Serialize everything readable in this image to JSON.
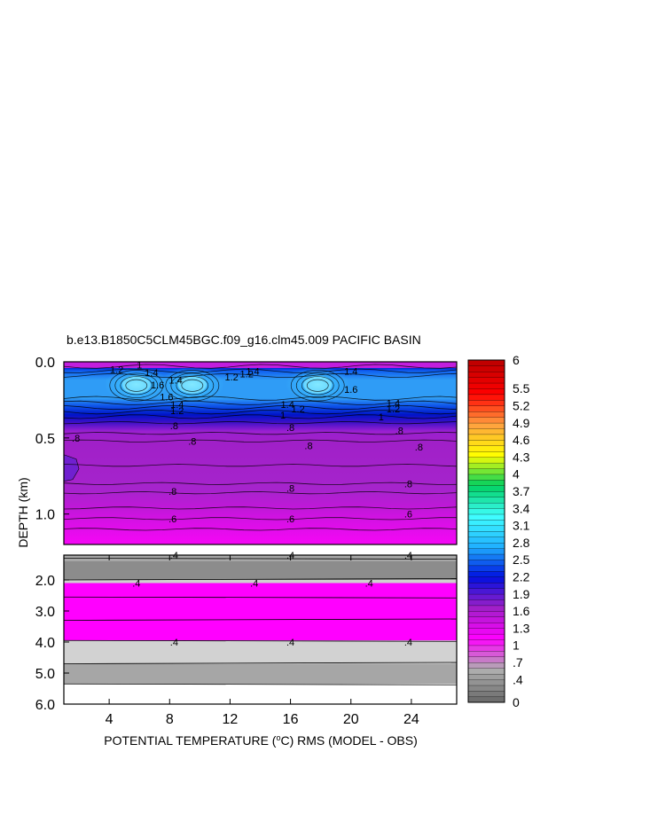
{
  "chart_data": {
    "type": "heatmap",
    "title": "b.e13.B1850C5CLM45BGC.f09_g16.clm45.009 PACIFIC BASIN",
    "xlabel_parts": [
      "POTENTIAL TEMPERATURE (",
      "o",
      "C) RMS (MODEL - OBS)"
    ],
    "ylabel": "DEPTH (km)",
    "x_range": [
      1,
      27
    ],
    "x_ticks": [
      4,
      8,
      12,
      16,
      20,
      24
    ],
    "x_tick_labels": [
      "4",
      "8",
      "12",
      "16",
      "20",
      "24"
    ],
    "upper_panel": {
      "depth_range_km": [
        0,
        1.2
      ],
      "y_ticks": [
        0.0,
        0.5,
        1.0
      ],
      "y_tick_labels": [
        "0.0",
        "0.5",
        "1.0"
      ]
    },
    "lower_panel": {
      "depth_range_km": [
        1.2,
        6.0
      ],
      "y_ticks": [
        2.0,
        3.0,
        4.0,
        5.0,
        6.0
      ],
      "y_tick_labels": [
        "2.0",
        "3.0",
        "4.0",
        "5.0",
        "6.0"
      ]
    },
    "colorbar": {
      "range": [
        0,
        6
      ],
      "label_values": [
        0,
        0.4,
        0.7,
        1,
        1.3,
        1.6,
        1.9,
        2.2,
        2.5,
        2.8,
        3.1,
        3.4,
        3.7,
        4,
        4.3,
        4.6,
        4.9,
        5.2,
        5.5,
        6
      ],
      "labels": [
        "0",
        ".4",
        ".7",
        "1",
        "1.3",
        "1.6",
        "1.9",
        "2.2",
        "2.5",
        "2.8",
        "3.1",
        "3.4",
        "3.7",
        "4",
        "4.3",
        "4.6",
        "4.9",
        "5.2",
        "5.5",
        "6"
      ],
      "key_colors": [
        "#6e6e6e",
        "#b0b0b0",
        "#ff00ff",
        "#a020c8",
        "#0010e0",
        "#20b0ff",
        "#40ffff",
        "#00d060",
        "#ffff00",
        "#ffa040",
        "#ff0000",
        "#c00000"
      ]
    },
    "upper_fields": [
      {
        "x": 5.8,
        "depth": 0.15,
        "value": 1.9,
        "type": "peak"
      },
      {
        "x": 9.5,
        "depth": 0.15,
        "value": 1.8,
        "type": "peak"
      },
      {
        "x": 17.8,
        "depth": 0.15,
        "value": 1.9,
        "type": "peak"
      },
      {
        "x": 1.0,
        "depth": 0.68,
        "value": 1.0,
        "type": "patch"
      }
    ],
    "contour_labels": [
      {
        "text": "1.2",
        "x": 4.5,
        "depth": 0.05
      },
      {
        "text": "1",
        "x": 6.0,
        "depth": 0.02
      },
      {
        "text": "1.4",
        "x": 6.8,
        "depth": 0.07
      },
      {
        "text": "1.6",
        "x": 7.2,
        "depth": 0.15
      },
      {
        "text": "1.4",
        "x": 8.4,
        "depth": 0.12
      },
      {
        "text": "1.2",
        "x": 12.1,
        "depth": 0.1
      },
      {
        "text": "1.2",
        "x": 13.1,
        "depth": 0.08
      },
      {
        "text": "1.4",
        "x": 13.5,
        "depth": 0.06
      },
      {
        "text": "1.4",
        "x": 20.0,
        "depth": 0.06
      },
      {
        "text": "1.6",
        "x": 20.0,
        "depth": 0.18
      },
      {
        "text": "1.6",
        "x": 7.8,
        "depth": 0.23
      },
      {
        "text": "1.4",
        "x": 8.5,
        "depth": 0.28
      },
      {
        "text": "1.2",
        "x": 8.5,
        "depth": 0.32
      },
      {
        "text": "1.4",
        "x": 15.8,
        "depth": 0.28
      },
      {
        "text": "1.2",
        "x": 16.5,
        "depth": 0.31
      },
      {
        "text": "1",
        "x": 15.5,
        "depth": 0.35
      },
      {
        "text": "1.4",
        "x": 22.8,
        "depth": 0.27
      },
      {
        "text": "1.2",
        "x": 22.8,
        "depth": 0.31
      },
      {
        "text": "1",
        "x": 22.0,
        "depth": 0.36
      },
      {
        "text": ".8",
        "x": 8.3,
        "depth": 0.42
      },
      {
        "text": ".8",
        "x": 16.0,
        "depth": 0.43
      },
      {
        "text": ".8",
        "x": 23.2,
        "depth": 0.45
      },
      {
        "text": ".8",
        "x": 1.8,
        "depth": 0.5
      },
      {
        "text": ".8",
        "x": 9.5,
        "depth": 0.52
      },
      {
        "text": ".8",
        "x": 17.2,
        "depth": 0.55
      },
      {
        "text": ".8",
        "x": 24.5,
        "depth": 0.56
      },
      {
        "text": ".8",
        "x": 8.2,
        "depth": 0.85
      },
      {
        "text": ".8",
        "x": 16.0,
        "depth": 0.83
      },
      {
        "text": ".8",
        "x": 23.8,
        "depth": 0.8
      },
      {
        "text": ".6",
        "x": 8.2,
        "depth": 1.03
      },
      {
        "text": ".6",
        "x": 16.0,
        "depth": 1.03
      },
      {
        "text": ".6",
        "x": 23.8,
        "depth": 1.0
      },
      {
        "text": ".4",
        "x": 8.3,
        "depth": 1.2
      },
      {
        "text": ".4",
        "x": 16.0,
        "depth": 1.2
      },
      {
        "text": ".4",
        "x": 23.8,
        "depth": 1.2
      },
      {
        "text": ".4",
        "x": 5.8,
        "depth": 2.1
      },
      {
        "text": ".4",
        "x": 13.6,
        "depth": 2.1
      },
      {
        "text": ".4",
        "x": 21.2,
        "depth": 2.1
      },
      {
        "text": ".4",
        "x": 8.3,
        "depth": 4.0
      },
      {
        "text": ".4",
        "x": 16.0,
        "depth": 4.0
      },
      {
        "text": ".4",
        "x": 23.8,
        "depth": 4.0
      }
    ],
    "lower_bands": [
      {
        "depth_from": 1.2,
        "depth_to": 1.4,
        "color": "#a7a7a7"
      },
      {
        "depth_from": 1.4,
        "depth_to": 2.0,
        "color": "#8c8c8c"
      },
      {
        "depth_from": 2.0,
        "depth_to": 2.1,
        "color": "#cfcfcf"
      },
      {
        "depth_from": 2.1,
        "depth_to": 3.95,
        "color": "#ff00ff"
      },
      {
        "depth_from": 3.95,
        "depth_to": 4.7,
        "color": "#d2d2d2"
      },
      {
        "depth_from": 4.7,
        "depth_to": 5.35,
        "color": "#a6a6a6"
      },
      {
        "depth_from": 5.35,
        "depth_to": 6.0,
        "color": "#ffffff"
      }
    ],
    "lower_lines": [
      1.3,
      2.0,
      2.55,
      3.3,
      3.95,
      4.7,
      5.35
    ]
  }
}
